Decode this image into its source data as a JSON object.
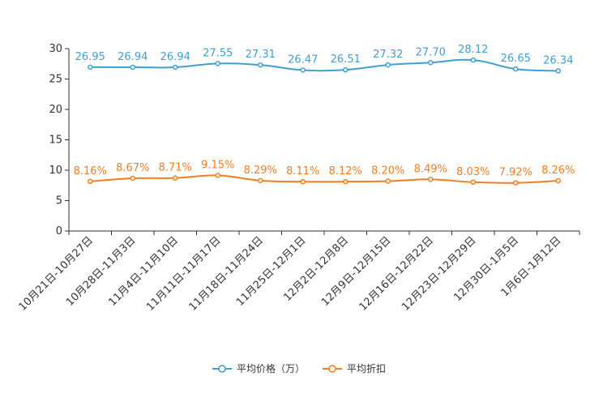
{
  "chart_data": {
    "type": "line",
    "title": "",
    "xlabel": "",
    "ylabel": "",
    "ylim": [
      0,
      30
    ],
    "yticks": [
      0,
      5,
      10,
      15,
      20,
      25,
      30
    ],
    "grid": false,
    "legend_position": "bottom-center",
    "categories": [
      "10月21日-10月27日",
      "10月28日-11月3日",
      "11月4日-11月10日",
      "11月11日-11月17日",
      "11月18日-11月24日",
      "11月25日-12月1日",
      "12月2日-12月8日",
      "12月9日-12月15日",
      "12月16日-12月22日",
      "12月23日-12月29日",
      "12月30日-1月5日",
      "1月6日-1月12日"
    ],
    "series": [
      {
        "name": "平均价格（万）",
        "color": "#3e9fd2",
        "values": [
          26.95,
          26.94,
          26.94,
          27.55,
          27.31,
          26.47,
          26.51,
          27.32,
          27.7,
          28.12,
          26.65,
          26.34
        ],
        "labels": [
          "26.95",
          "26.94",
          "26.94",
          "27.55",
          "27.31",
          "26.47",
          "26.51",
          "27.32",
          "27.70",
          "28.12",
          "26.65",
          "26.34"
        ]
      },
      {
        "name": "平均折扣",
        "color": "#f57c1f",
        "values": [
          8.16,
          8.67,
          8.71,
          9.15,
          8.29,
          8.11,
          8.12,
          8.2,
          8.49,
          8.03,
          7.92,
          8.26
        ],
        "labels": [
          "8.16%",
          "8.67%",
          "8.71%",
          "9.15%",
          "8.29%",
          "8.11%",
          "8.12%",
          "8.20%",
          "8.49%",
          "8.03%",
          "7.92%",
          "8.26%"
        ]
      }
    ]
  }
}
